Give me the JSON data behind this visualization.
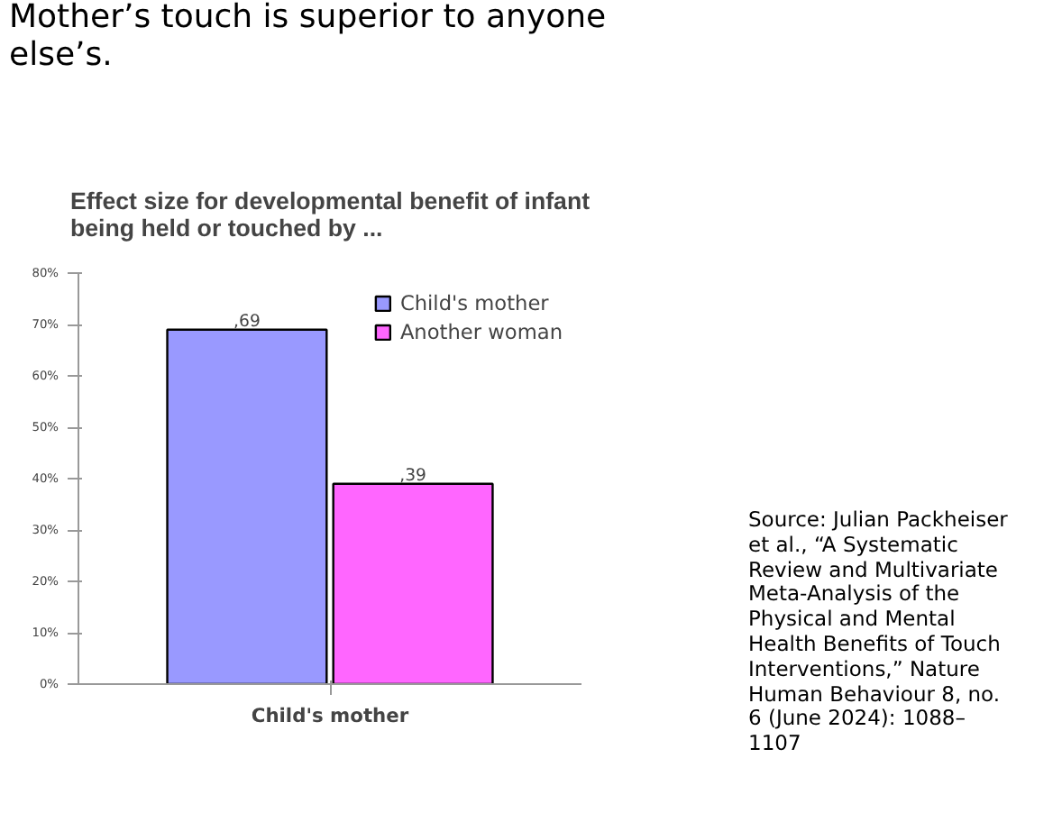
{
  "chart_data": {
    "type": "bar",
    "title": "Effect size for developmental benefit of infant\nbeing held or touched by ...",
    "categories": [
      "Child's mother"
    ],
    "series": [
      {
        "name": "Child's mother",
        "color": "#9999ff",
        "values": [
          69
        ],
        "value_labels": [
          ",69"
        ]
      },
      {
        "name": "Another woman",
        "color": "#ff66ff",
        "values": [
          39
        ],
        "value_labels": [
          ",39"
        ]
      }
    ],
    "ylim": [
      0,
      80
    ],
    "yticks": [
      {
        "value": 0,
        "label": "0%"
      },
      {
        "value": 10,
        "label": "10%"
      },
      {
        "value": 20,
        "label": "20%"
      },
      {
        "value": 30,
        "label": "30%"
      },
      {
        "value": 40,
        "label": "40%"
      },
      {
        "value": 50,
        "label": "50%"
      },
      {
        "value": 60,
        "label": "60%"
      },
      {
        "value": 70,
        "label": "70%"
      },
      {
        "value": 80,
        "label": "80%"
      }
    ],
    "legend": "top right",
    "grid": false,
    "annotations": [
      "Mother’s touch is superior to anyone\nelse’s.",
      "Source: Julian Packheiser\net al., “A Systematic\nReview and Multivariate\nMeta-Analysis of the\nPhysical and Mental\nHealth Benefits of Touch\nInterventions,” Nature\nHuman Behaviour 8, no.\n6 (June 2024): 1088–\n1107"
    ]
  }
}
